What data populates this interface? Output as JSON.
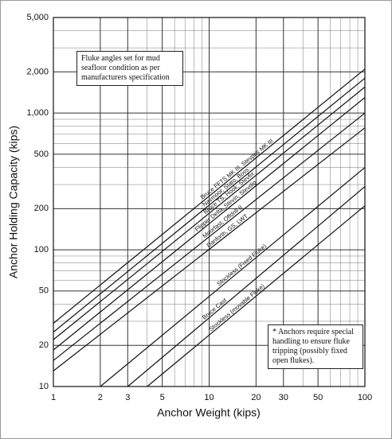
{
  "chart_data": {
    "type": "line",
    "x_label": "Anchor Weight (kips)",
    "y_label": "Anchor Holding Capacity (kips)",
    "log_x": true,
    "log_y": true,
    "grid": true,
    "xlim": [
      1,
      100
    ],
    "ylim": [
      10,
      5000
    ],
    "xticks": [
      1,
      2,
      3,
      5,
      10,
      20,
      30,
      50,
      100
    ],
    "yticks": [
      10,
      20,
      50,
      100,
      200,
      500,
      {
        "value": 1000,
        "label": "1,000"
      },
      {
        "value": 2000,
        "label": "2,000"
      },
      {
        "value": 5000,
        "label": "5,000"
      }
    ],
    "minor_xticks": [
      4,
      6,
      7,
      8,
      9,
      40,
      60,
      70,
      80,
      90
    ],
    "minor_yticks": [
      30,
      40,
      60,
      70,
      80,
      90,
      300,
      400,
      600,
      700,
      800,
      900,
      3000,
      4000
    ],
    "series": [
      {
        "name": "Bruce FFTS MK III, Stevpris MK III",
        "color": "#111111",
        "x": [
          1,
          100
        ],
        "values": [
          29,
          2100
        ]
      },
      {
        "name": "Navmoor, Stato, Boss",
        "color": "#111111",
        "x": [
          1,
          100
        ],
        "values": [
          25,
          1800
        ]
      },
      {
        "name": "Bruce TS, Hook, Stevfix",
        "color": "#111111",
        "x": [
          1,
          100
        ],
        "values": [
          22,
          1550
        ]
      },
      {
        "name": "Flipper Delta, Stevin, Stevdig",
        "color": "#111111",
        "x": [
          1,
          100
        ],
        "values": [
          18.5,
          1300
        ]
      },
      {
        "name": "Moorfast, Offdrill II",
        "color": "#111111",
        "x": [
          1,
          100
        ],
        "values": [
          15.5,
          1000
        ]
      },
      {
        "name": "Danforth, GS, LWT",
        "color": "#111111",
        "x": [
          1,
          100
        ],
        "values": [
          13,
          780
        ]
      },
      {
        "name": "Stockless (Fixed Fluke)",
        "color": "#111111",
        "x": [
          2,
          100
        ],
        "values": [
          10,
          400
        ]
      },
      {
        "name": "Bruce Cast",
        "color": "#111111",
        "x": [
          3,
          100
        ],
        "values": [
          10,
          290
        ]
      },
      {
        "name": "Stockless (movable Fluke)",
        "color": "#111111",
        "x": [
          4,
          100
        ],
        "values": [
          10,
          210
        ]
      }
    ],
    "annotations": [
      {
        "text": "Fluke angles set for mud seafloor condition as per manufacturers specification"
      },
      {
        "text": "* Anchors require special handling to ensure fluke tripping (possibly fixed open flukes)."
      }
    ]
  }
}
